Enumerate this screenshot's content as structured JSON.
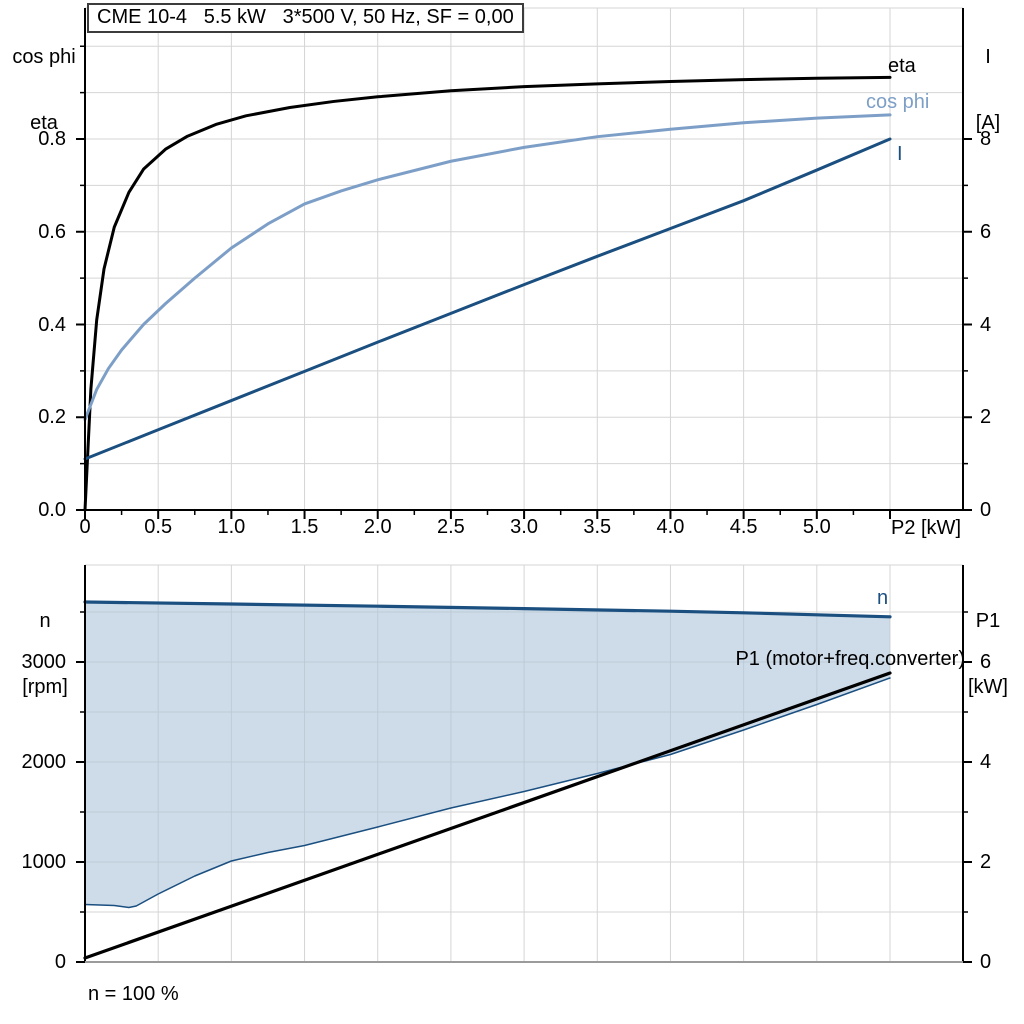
{
  "title": "CME 10-4   5.5 kW   3*500 V, 50 Hz, SF = 0,00",
  "colors": {
    "curve_eta": "#000000",
    "curve_cos_phi": "#7d9fc7",
    "curve_current": "#1a4f80",
    "curve_n": "#1a4f80",
    "curve_n_min": "#1a4f80",
    "curve_p1": "#000000",
    "region_fill": "#aec4db",
    "grid": "#d5d5d5",
    "axis": "#000000",
    "axis_secondary": "#9b9b9b",
    "title_border": "#3c3c3c"
  },
  "top_chart": {
    "left_axis_title_1": "cos phi",
    "left_axis_title_2": "eta",
    "right_axis_title_1": "I",
    "right_axis_title_2": "[A]",
    "curve_labels": {
      "eta": "eta",
      "cos_phi": "cos phi",
      "current": "I"
    }
  },
  "bottom_chart": {
    "left_axis_title_1": "n",
    "left_axis_title_2": "[rpm]",
    "right_axis_title_1": "P1",
    "right_axis_title_2": "[kW]",
    "curve_labels": {
      "n": "n",
      "p1": "P1 (motor+freq.converter)"
    }
  },
  "chart_data": [
    {
      "type": "line",
      "xlabel": "P2 [kW]",
      "xlim": [
        0,
        6.0
      ],
      "x_tick_values": [
        0,
        0.5,
        1,
        1.5,
        2,
        2.5,
        3,
        3.5,
        4,
        4.5,
        5
      ],
      "x_tick_labels": [
        "0",
        "0.5",
        "1.0",
        "1.5",
        "2.0",
        "2.5",
        "3.0",
        "3.5",
        "4.0",
        "4.5",
        "5.0"
      ],
      "ylabel_left": "cos phi / eta",
      "ylim_left": [
        0,
        1.083
      ],
      "y_left_tick_values": [
        0,
        0.2,
        0.4,
        0.6,
        0.8
      ],
      "y_left_tick_labels": [
        "0.0",
        "0.2",
        "0.4",
        "0.6",
        "0.8"
      ],
      "y_left_minor_ticks": [
        0.1,
        0.3,
        0.5,
        0.7,
        0.9,
        1.0
      ],
      "ylabel_right": "I [A]",
      "ylim_right": [
        0,
        8.66
      ],
      "y_right_tick_values": [
        0,
        2,
        4,
        6,
        8
      ],
      "y_right_tick_labels": [
        "0",
        "2",
        "4",
        "6",
        "8"
      ],
      "y_right_minor_ticks": [
        1,
        3,
        5,
        7
      ],
      "grid": true,
      "legend_position": "labels at right ends of curves",
      "series": [
        {
          "name": "eta",
          "axis": "left",
          "color": "#000000",
          "width": 3,
          "x": [
            0,
            0.04,
            0.08,
            0.13,
            0.2,
            0.3,
            0.4,
            0.55,
            0.7,
            0.9,
            1.1,
            1.4,
            1.7,
            2.0,
            2.5,
            3.0,
            3.5,
            4.0,
            4.5,
            5.0,
            5.5
          ],
          "y": [
            0,
            0.26,
            0.41,
            0.52,
            0.61,
            0.685,
            0.735,
            0.778,
            0.806,
            0.832,
            0.85,
            0.868,
            0.881,
            0.891,
            0.904,
            0.913,
            0.919,
            0.924,
            0.928,
            0.931,
            0.933
          ]
        },
        {
          "name": "cos phi",
          "axis": "left",
          "color": "#7d9fc7",
          "width": 3,
          "x": [
            0,
            0.08,
            0.16,
            0.25,
            0.4,
            0.55,
            0.75,
            1.0,
            1.25,
            1.5,
            1.75,
            2.0,
            2.5,
            3.0,
            3.5,
            4.0,
            4.5,
            5.0,
            5.5
          ],
          "y": [
            0.195,
            0.26,
            0.305,
            0.345,
            0.4,
            0.445,
            0.5,
            0.565,
            0.617,
            0.66,
            0.688,
            0.712,
            0.752,
            0.782,
            0.805,
            0.821,
            0.835,
            0.845,
            0.852
          ]
        },
        {
          "name": "I",
          "axis": "right",
          "color": "#1a4f80",
          "width": 3,
          "x": [
            0,
            0.5,
            1,
            1.5,
            2,
            2.5,
            3,
            3.5,
            4,
            4.5,
            5,
            5.5
          ],
          "y": [
            1.1,
            1.73,
            2.36,
            2.99,
            3.62,
            4.24,
            4.86,
            5.47,
            6.07,
            6.67,
            7.33,
            8.0
          ]
        }
      ]
    },
    {
      "type": "line+area",
      "xlabel": "",
      "xlim": [
        0,
        6.0
      ],
      "ylabel_left": "n [rpm]",
      "ylim_left": [
        0,
        3970
      ],
      "y_left_tick_values": [
        0,
        1000,
        2000,
        3000
      ],
      "y_left_tick_labels": [
        "0",
        "1000",
        "2000",
        "3000"
      ],
      "y_left_minor_ticks": [
        500,
        1500,
        2500,
        3500
      ],
      "ylabel_right": "P1 [kW]",
      "ylim_right": [
        0,
        7.94
      ],
      "y_right_tick_values": [
        0,
        2,
        4,
        6
      ],
      "y_right_tick_labels": [
        "0",
        "2",
        "4",
        "6"
      ],
      "y_right_minor_ticks": [
        1,
        3,
        5,
        7
      ],
      "grid": true,
      "annotation": "n = 100 %",
      "area": {
        "upper": "n",
        "lower": "n-min",
        "color": "#aec4db",
        "opacity": 0.6
      },
      "series": [
        {
          "name": "n-min",
          "axis": "left",
          "color": "#1a4f80",
          "width": 1.5,
          "x": [
            0,
            0.2,
            0.3,
            0.35,
            0.5,
            0.75,
            1.0,
            1.25,
            1.5,
            2.0,
            2.5,
            3.0,
            3.5,
            4.0,
            4.5,
            5.0,
            5.5
          ],
          "y": [
            575,
            565,
            545,
            560,
            680,
            860,
            1010,
            1095,
            1165,
            1350,
            1540,
            1705,
            1885,
            2075,
            2320,
            2575,
            2840
          ]
        },
        {
          "name": "P1 (motor+freq.converter)",
          "axis": "right",
          "color": "#000000",
          "width": 3.2,
          "x": [
            0,
            5.5
          ],
          "y": [
            0.08,
            5.78
          ]
        },
        {
          "name": "n",
          "axis": "left",
          "color": "#1a4f80",
          "width": 3.2,
          "x": [
            0,
            1,
            2,
            3,
            4,
            4.5,
            5,
            5.5
          ],
          "y": [
            3600,
            3580,
            3558,
            3534,
            3508,
            3492,
            3472,
            3452
          ]
        }
      ]
    }
  ]
}
